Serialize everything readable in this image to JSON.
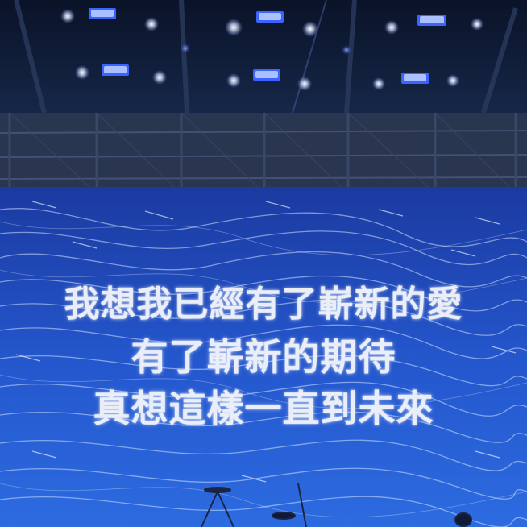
{
  "scene": {
    "description_colors": {
      "ceiling": "#0c1832",
      "truss": "#3c4c6c",
      "screen_top": "#1e3f9a",
      "screen_bottom": "#2b62d8",
      "light_blue": "#3d6cff",
      "light_white": "#ffffff"
    }
  },
  "lyrics": {
    "line1": "我想我已經有了嶄新的愛",
    "line2": "有了嶄新的期待",
    "line3": "真想這樣一直到未來"
  }
}
